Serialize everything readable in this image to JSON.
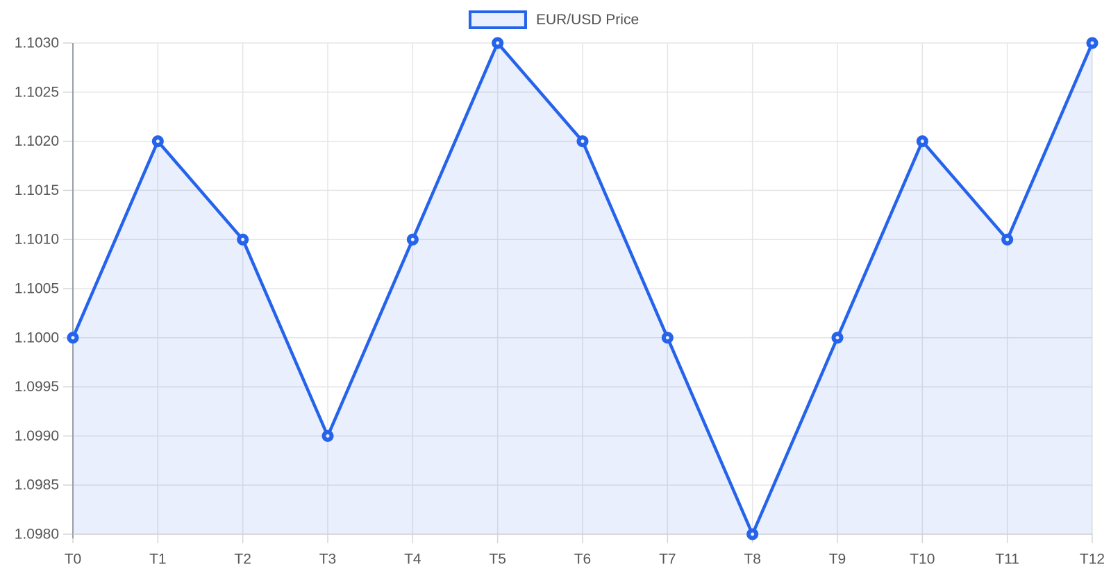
{
  "chart_data": {
    "type": "area",
    "title": "",
    "categories": [
      "T0",
      "T1",
      "T2",
      "T3",
      "T4",
      "T5",
      "T6",
      "T7",
      "T8",
      "T9",
      "T10",
      "T11",
      "T12"
    ],
    "series": [
      {
        "name": "EUR/USD Price",
        "values": [
          1.1,
          1.102,
          1.101,
          1.099,
          1.101,
          1.103,
          1.102,
          1.1,
          1.098,
          1.1,
          1.102,
          1.101,
          1.103
        ]
      }
    ],
    "xlabel": "",
    "ylabel": "",
    "ylim": [
      1.098,
      1.103
    ],
    "ytick_step": 0.0005,
    "ytick_labels": [
      "1.1030",
      "1.1025",
      "1.1020",
      "1.1015",
      "1.1010",
      "1.1005",
      "1.1000",
      "1.0995",
      "1.0990",
      "1.0985",
      "1.0980"
    ],
    "grid": true,
    "legend_position": "top-center",
    "colors": {
      "line": "#2563eb",
      "area_fill": "rgba(37, 99, 235, 0.10)",
      "point_fill": "#e8eefb",
      "legend_swatch_fill": "#e9effc",
      "grid": "#e5e5e5",
      "axis_border_left": "#9a9ea8",
      "axis_border_bottom": "#d2d2d2",
      "tick_mark": "#d6d6d6",
      "tick_text": "#565656",
      "legend_text": "#525252"
    }
  }
}
